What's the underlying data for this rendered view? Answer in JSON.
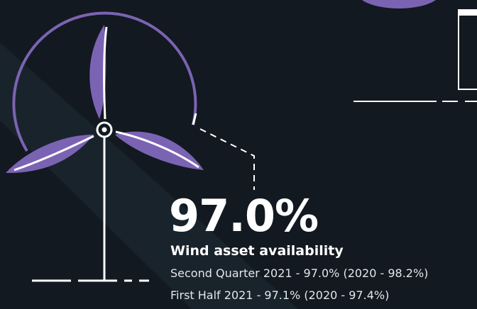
{
  "stat": {
    "value_text": "97.0%",
    "label": "Wind asset availability",
    "details": [
      "Second Quarter 2021 - 97.0% (2020 - 98.2%)",
      "First Half 2021 - 97.1% (2020 - 97.4%)"
    ]
  }
}
